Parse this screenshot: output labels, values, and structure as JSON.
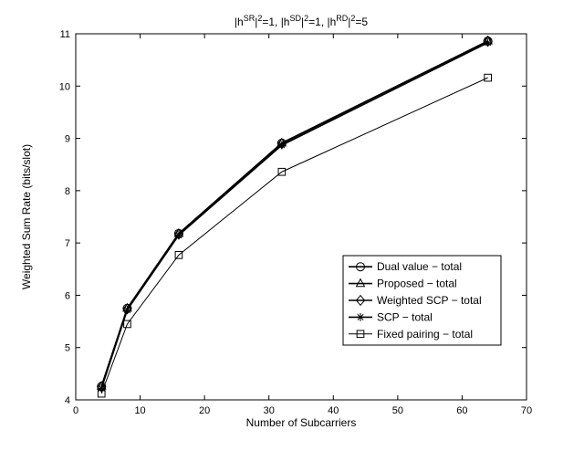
{
  "chart_data": {
    "type": "line",
    "title": "|h^SR|^2=1, |h^SD|^2=1, |h^RD|^2=5",
    "title_parts": [
      {
        "text": "|h",
        "sup": false
      },
      {
        "text": "SR",
        "sup": true
      },
      {
        "text": "|",
        "sup": false
      },
      {
        "text": "2",
        "sup": true
      },
      {
        "text": "=1, |h",
        "sup": false
      },
      {
        "text": "SD",
        "sup": true
      },
      {
        "text": "|",
        "sup": false
      },
      {
        "text": "2",
        "sup": true
      },
      {
        "text": "=1, |h",
        "sup": false
      },
      {
        "text": "RD",
        "sup": true
      },
      {
        "text": "|",
        "sup": false
      },
      {
        "text": "2",
        "sup": true
      },
      {
        "text": "=5",
        "sup": false
      }
    ],
    "xlabel": "Number of Subcarriers",
    "ylabel": "Weighted Sum Rate  (bits/slot)",
    "xlim": [
      0,
      70
    ],
    "ylim": [
      4,
      11
    ],
    "xticks": [
      0,
      10,
      20,
      30,
      40,
      50,
      60,
      70
    ],
    "yticks": [
      4,
      5,
      6,
      7,
      8,
      9,
      10,
      11
    ],
    "grid": false,
    "legend_position": "lower-right",
    "x": [
      4,
      8,
      16,
      32,
      64
    ],
    "series": [
      {
        "name": "Dual value − total",
        "marker": "circle",
        "values": [
          4.26,
          5.75,
          7.18,
          8.91,
          10.86
        ],
        "color": "#000000",
        "width": 1.6
      },
      {
        "name": "Proposed − total",
        "marker": "triangle",
        "values": [
          4.26,
          5.75,
          7.18,
          8.91,
          10.86
        ],
        "color": "#000000",
        "width": 1.6
      },
      {
        "name": "Weighted SCP − total",
        "marker": "diamond",
        "values": [
          4.25,
          5.74,
          7.17,
          8.9,
          10.86
        ],
        "color": "#000000",
        "width": 1.6
      },
      {
        "name": "SCP − total",
        "marker": "star",
        "values": [
          4.22,
          5.72,
          7.15,
          8.87,
          10.83
        ],
        "color": "#000000",
        "width": 1.6
      },
      {
        "name": "Fixed pairing − total",
        "marker": "square",
        "values": [
          4.12,
          5.45,
          6.77,
          8.36,
          10.16
        ],
        "color": "#000000",
        "width": 1.0
      }
    ]
  }
}
